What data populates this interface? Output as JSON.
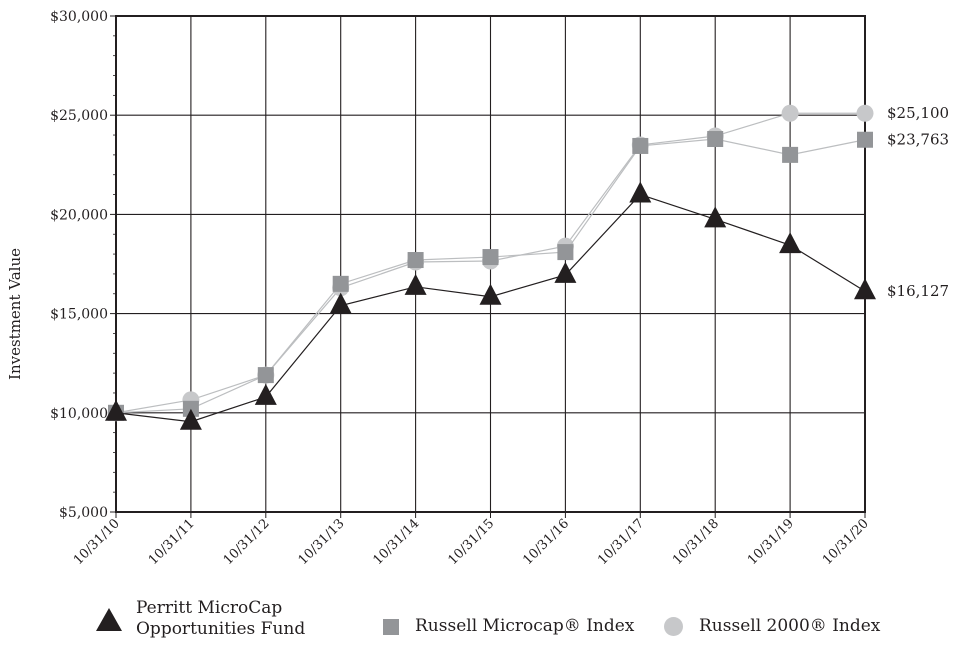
{
  "chart_data": {
    "type": "line",
    "ylabel": "Investment Value",
    "xlabel": "",
    "categories": [
      "10/31/10",
      "10/31/11",
      "10/31/12",
      "10/31/13",
      "10/31/14",
      "10/31/15",
      "10/31/16",
      "10/31/17",
      "10/31/18",
      "10/31/19",
      "10/31/20"
    ],
    "ylim": [
      5000,
      30000
    ],
    "yticks": [
      5000,
      10000,
      15000,
      20000,
      25000,
      30000
    ],
    "ytick_labels": [
      "$5,000",
      "$10,000",
      "$15,000",
      "$20,000",
      "$25,000",
      "$30,000"
    ],
    "grid": true,
    "legend_position": "bottom",
    "series": [
      {
        "name": "Perritt MicroCap Opportunities Fund",
        "marker": "triangle",
        "color": "#231f20",
        "values": [
          10000,
          9550,
          10800,
          15400,
          16350,
          15850,
          16950,
          21000,
          19750,
          18450,
          16127
        ],
        "end_label": "$16,127"
      },
      {
        "name": "Russell Microcap® Index",
        "marker": "square",
        "color": "#939598",
        "values": [
          10000,
          10200,
          11900,
          16500,
          17700,
          17850,
          18100,
          23450,
          23800,
          23000,
          23763
        ],
        "end_label": "$23,763"
      },
      {
        "name": "Russell 2000® Index",
        "marker": "circle",
        "color": "#c7c8ca",
        "values": [
          10000,
          10650,
          11900,
          16300,
          17600,
          17650,
          18400,
          23500,
          23950,
          25100,
          25100
        ],
        "end_label": "$25,100"
      }
    ]
  },
  "legend": {
    "fund_line1": "Perritt MicroCap",
    "fund_line2": "Opportunities Fund",
    "microcap": "Russell Microcap® Index",
    "r2000": "Russell 2000® Index"
  }
}
